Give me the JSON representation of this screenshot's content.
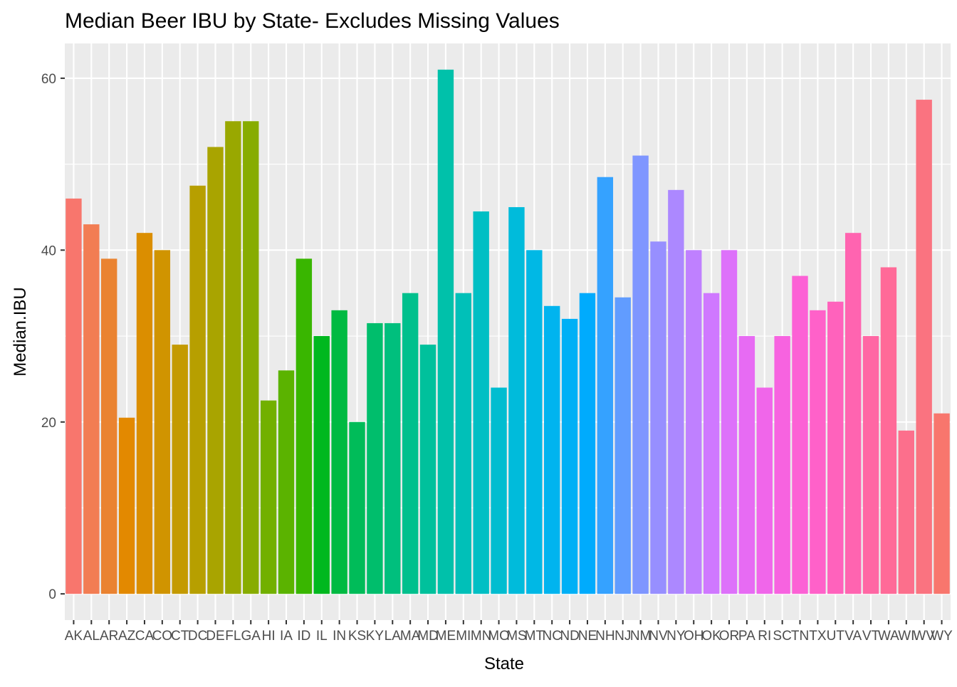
{
  "chart_data": {
    "type": "bar",
    "title": "Median Beer IBU by State- Excludes Missing Values",
    "xlabel": "State",
    "ylabel": "Median.IBU",
    "ylim": [
      -3.05,
      64.05
    ],
    "yticks": [
      0,
      20,
      40,
      60
    ],
    "grid": true,
    "legend": "none",
    "categories": [
      "AK",
      "AL",
      "AR",
      "AZ",
      "CA",
      "CO",
      "CT",
      "DC",
      "DE",
      "FL",
      "GA",
      "HI",
      "IA",
      "ID",
      "IL",
      "IN",
      "KS",
      "KY",
      "LA",
      "MA",
      "MD",
      "ME",
      "MI",
      "MN",
      "MO",
      "MS",
      "MT",
      "NC",
      "ND",
      "NE",
      "NH",
      "NJ",
      "NM",
      "NV",
      "NY",
      "OH",
      "OK",
      "OR",
      "PA",
      "RI",
      "SC",
      "TN",
      "TX",
      "UT",
      "VA",
      "VT",
      "WA",
      "WI",
      "WV",
      "WY"
    ],
    "values": [
      46,
      43,
      39,
      20.5,
      42,
      40,
      29,
      47.5,
      52,
      55,
      55,
      22.5,
      26,
      39,
      30,
      33,
      20,
      31.5,
      31.5,
      35,
      29,
      61,
      35,
      44.5,
      24,
      45,
      40,
      33.5,
      32,
      35,
      48.5,
      34.5,
      51,
      41,
      47,
      40,
      35,
      40,
      30,
      24,
      30,
      37,
      33,
      34,
      42,
      30,
      38,
      19,
      57.5,
      21
    ],
    "colors": [
      "#F8766D",
      "#F27D53",
      "#EA8331",
      "#E38900",
      "#DB8E00",
      "#D09400",
      "#C49A00",
      "#B79F00",
      "#A9A400",
      "#99A800",
      "#87AC00",
      "#72B000",
      "#5BB300",
      "#39B600",
      "#00B81F",
      "#00BA42",
      "#00BC59",
      "#00BE6C",
      "#00BF7D",
      "#00C08D",
      "#00C19C",
      "#00C1AA",
      "#00C0B8",
      "#00BFC4",
      "#00BDD0",
      "#00BBDB",
      "#00B8E5",
      "#00B4EF",
      "#00B0F6",
      "#00ABFD",
      "#35A2FF",
      "#619CFF",
      "#7F96FF",
      "#978FFF",
      "#AC88FF",
      "#BF80FF",
      "#CF78FF",
      "#DD71FA",
      "#E76BF3",
      "#F066EA",
      "#F763E0",
      "#FC61D5",
      "#FF61C9",
      "#FF62BC",
      "#FF64B0",
      "#FF67A4",
      "#FF6A98",
      "#FC6F8C",
      "#FA7380",
      "#F8766D"
    ]
  }
}
